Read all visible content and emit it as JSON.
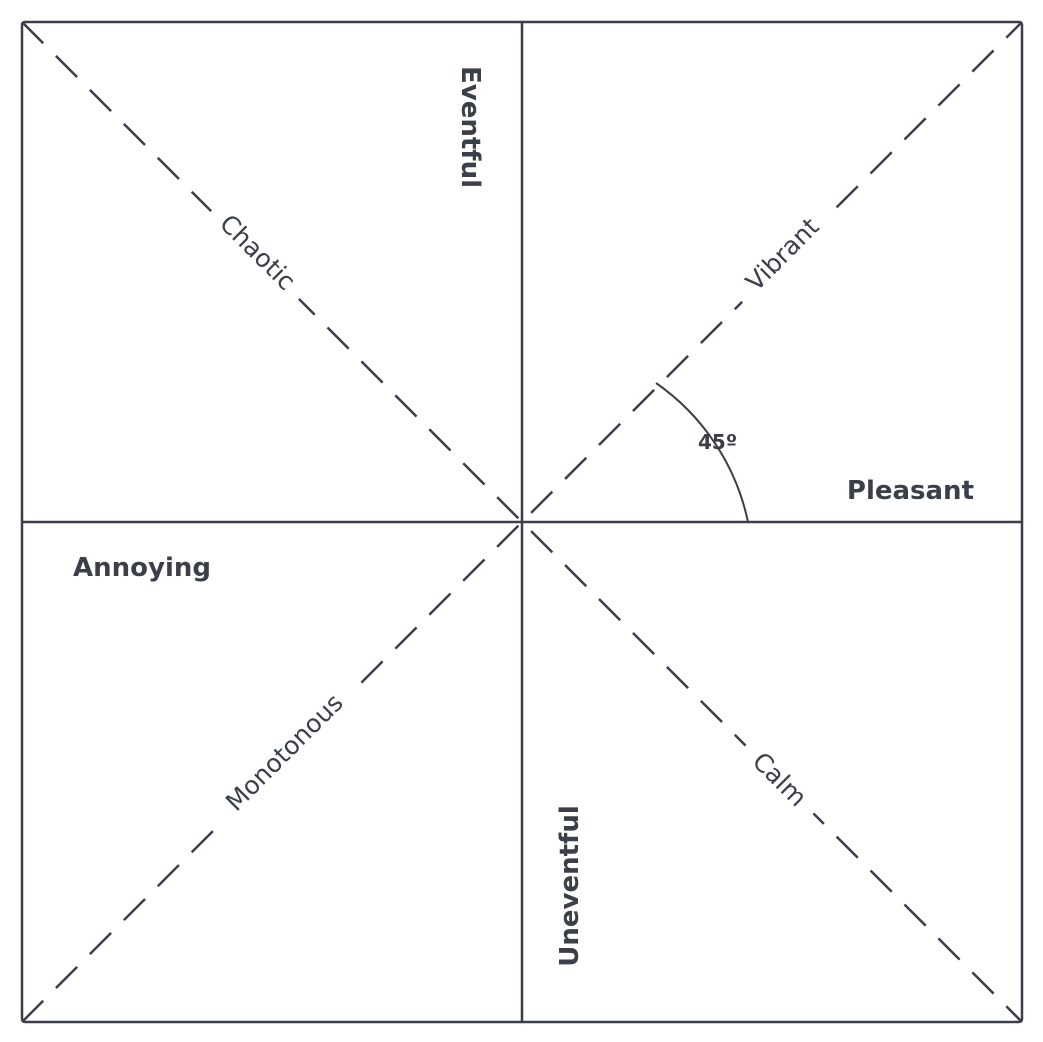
{
  "axes": {
    "top": "Eventful",
    "bottom": "Uneventful",
    "left": "Annoying",
    "right": "Pleasant"
  },
  "diagonals": {
    "top_left": "Chaotic",
    "top_right": "Vibrant",
    "bottom_left": "Monotonous",
    "bottom_right": "Calm"
  },
  "angle": {
    "value": 45,
    "label": "45º"
  },
  "colors": {
    "line": "#3b3f4a",
    "background": "#ffffff"
  }
}
